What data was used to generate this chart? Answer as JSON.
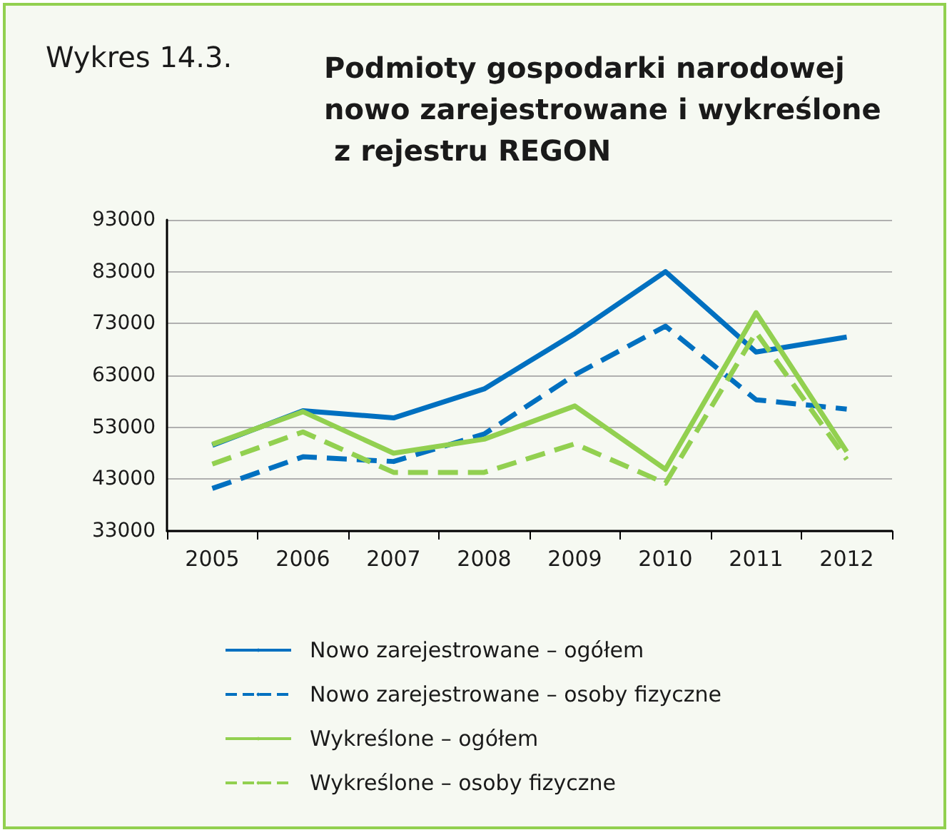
{
  "chart_data": {
    "type": "line",
    "title": "Podmioty gospodarki narodowej nowo zarejestrowane i wykreślone z rejestru REGON",
    "annotations": [
      "Wykres 14.3."
    ],
    "categories": [
      "2005",
      "2006",
      "2007",
      "2008",
      "2009",
      "2010",
      "2011",
      "2012"
    ],
    "series": [
      {
        "name": "Nowo zarejestrowane – ogółem",
        "color": "#0070c0",
        "line_style": "solid",
        "values": [
          49500,
          56200,
          54800,
          60400,
          71100,
          83000,
          67500,
          70400
        ]
      },
      {
        "name": "Nowo zarejestrowane – osoby fizyczne",
        "color": "#0070c0",
        "line_style": "dashed",
        "values": [
          41200,
          47300,
          46400,
          51700,
          63100,
          72500,
          58300,
          56500
        ]
      },
      {
        "name": "Wykreślone – ogółem",
        "color": "#92d050",
        "line_style": "solid",
        "values": [
          49700,
          56000,
          48000,
          50700,
          57100,
          44900,
          75100,
          48300
        ]
      },
      {
        "name": "Wykreślone – osoby fizyczne",
        "color": "#92d050",
        "line_style": "dashed",
        "values": [
          45900,
          52100,
          44300,
          44300,
          49800,
          42200,
          71300,
          46800
        ]
      }
    ],
    "ylim": [
      33000,
      93000
    ],
    "yticks": [
      33000,
      43000,
      53000,
      63000,
      73000,
      83000,
      93000
    ],
    "grid": "y",
    "legend": "bottom",
    "marker": "none"
  }
}
